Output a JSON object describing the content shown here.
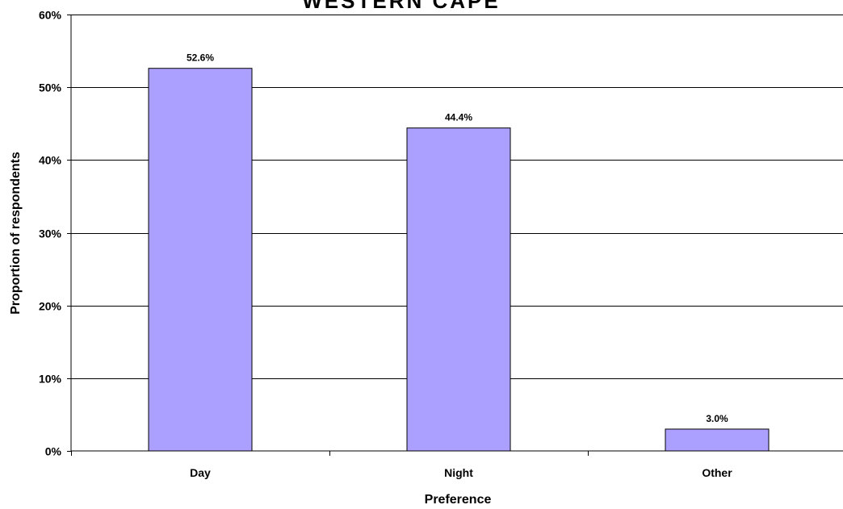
{
  "watermark": "WESTERN CAPE",
  "chart_data": {
    "type": "bar",
    "categories": [
      "Day",
      "Night",
      "Other"
    ],
    "values": [
      52.6,
      44.4,
      3.0
    ],
    "data_labels": [
      "52.6%",
      "44.4%",
      "3.0%"
    ],
    "title": "",
    "xlabel": "Preference",
    "ylabel": "Proportion of respondents",
    "ylim": [
      0,
      60
    ],
    "yticks": [
      0,
      10,
      20,
      30,
      40,
      50,
      60
    ],
    "ytick_labels": [
      "0%",
      "10%",
      "20%",
      "30%",
      "40%",
      "50%",
      "60%"
    ],
    "grid": true,
    "legend": "none",
    "bar_color": "#ABA0FF",
    "bar_edge_color": "#000000",
    "watermark_color": "#D4D4EC"
  }
}
